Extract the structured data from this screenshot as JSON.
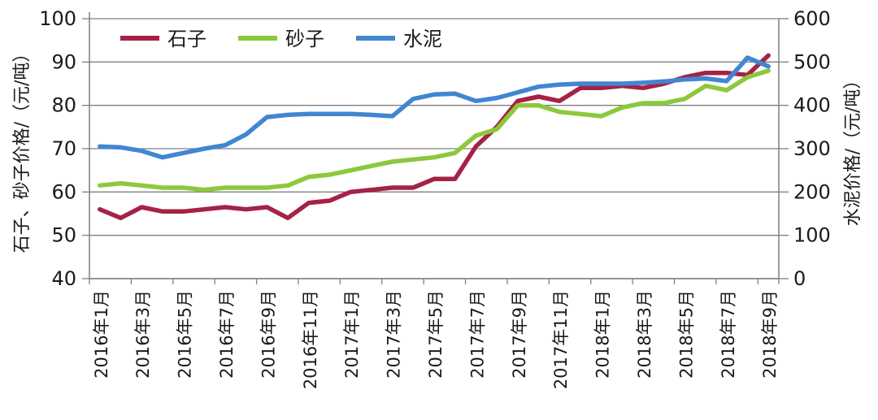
{
  "chart_data": {
    "type": "line",
    "title": "",
    "legend_position": "top-inside",
    "grid": true,
    "categories": [
      "2016年1月",
      "2016年2月",
      "2016年3月",
      "2016年4月",
      "2016年5月",
      "2016年6月",
      "2016年7月",
      "2016年8月",
      "2016年9月",
      "2016年10月",
      "2016年11月",
      "2016年12月",
      "2017年1月",
      "2017年2月",
      "2017年3月",
      "2017年4月",
      "2017年5月",
      "2017年6月",
      "2017年7月",
      "2017年8月",
      "2017年9月",
      "2017年10月",
      "2017年11月",
      "2017年12月",
      "2018年1月",
      "2018年2月",
      "2018年3月",
      "2018年4月",
      "2018年5月",
      "2018年6月",
      "2018年7月",
      "2018年8月",
      "2018年9月"
    ],
    "x_tick_labels": [
      "2016年1月",
      "2016年3月",
      "2016年5月",
      "2016年7月",
      "2016年9月",
      "2016年11月",
      "2017年1月",
      "2017年3月",
      "2017年5月",
      "2017年7月",
      "2017年9月",
      "2017年11月",
      "2018年1月",
      "2018年3月",
      "2018年5月",
      "2018年7月",
      "2018年9月"
    ],
    "left_axis": {
      "title": "石子、砂子价格/（元/吨）",
      "min": 40,
      "max": 100,
      "ticks": [
        100,
        90,
        80,
        70,
        60,
        50,
        40
      ]
    },
    "right_axis": {
      "title": "水泥价格/（元/吨）",
      "min": 0,
      "max": 600,
      "ticks": [
        600,
        500,
        400,
        300,
        200,
        100,
        0
      ]
    },
    "series": [
      {
        "name": "石子",
        "axis": "left",
        "color": "#a52246",
        "values": [
          56,
          54,
          56.5,
          55.5,
          55.5,
          56,
          56.5,
          56,
          56.5,
          54,
          57.5,
          58,
          60,
          60.5,
          61,
          61,
          63,
          63,
          70.5,
          75,
          81,
          82,
          81,
          84,
          84,
          84.5,
          84,
          85,
          86.5,
          87.5,
          87.5,
          87,
          91.5
        ]
      },
      {
        "name": "砂子",
        "axis": "left",
        "color": "#8cc83c",
        "values": [
          61.5,
          62,
          61.5,
          61,
          61,
          60.5,
          61,
          61,
          61,
          61.5,
          63.5,
          64,
          65,
          66,
          67,
          67.5,
          68,
          69,
          73,
          74.5,
          80,
          80,
          78.5,
          78,
          77.5,
          79.5,
          80.5,
          80.5,
          81.5,
          84.5,
          83.5,
          86.5,
          88
        ]
      },
      {
        "name": "水泥",
        "axis": "right",
        "color": "#4186d2",
        "values": [
          305,
          303,
          295,
          280,
          290,
          300,
          308,
          333,
          373,
          378,
          380,
          380,
          380,
          378,
          375,
          415,
          425,
          427,
          410,
          417,
          430,
          443,
          448,
          450,
          450,
          450,
          452,
          455,
          460,
          462,
          456,
          510,
          490
        ]
      }
    ],
    "colors": {
      "gridline": "#7f7f7f",
      "spine": "#7f7f7f",
      "text": "#1a1a1a",
      "background": "#ffffff"
    }
  }
}
